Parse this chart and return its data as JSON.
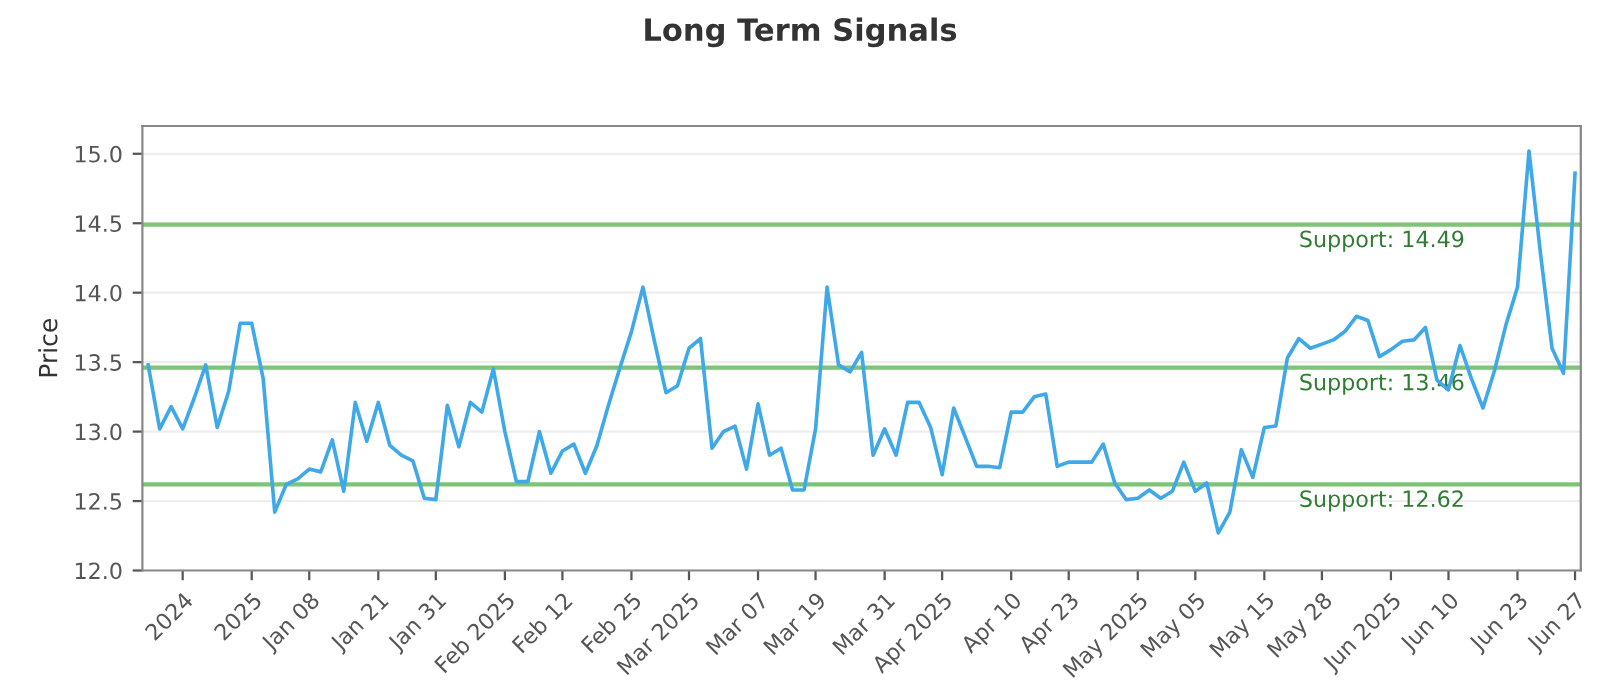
{
  "chart_data": {
    "type": "line",
    "title": "Long Term Signals",
    "ylabel": "Price",
    "categories": [
      null,
      null,
      null,
      "2024",
      null,
      null,
      null,
      null,
      null,
      "2025",
      null,
      null,
      null,
      null,
      "Jan 08",
      null,
      null,
      null,
      null,
      null,
      "Jan 21",
      null,
      null,
      null,
      null,
      "Jan 31",
      null,
      null,
      null,
      null,
      null,
      "Feb 2025",
      null,
      null,
      null,
      null,
      "Feb 12",
      null,
      null,
      null,
      null,
      null,
      "Feb 25",
      null,
      null,
      null,
      null,
      "Mar 2025",
      null,
      null,
      null,
      null,
      null,
      "Mar 07",
      null,
      null,
      null,
      null,
      "Mar 19",
      null,
      null,
      null,
      null,
      null,
      "Mar 31",
      null,
      null,
      null,
      null,
      "Apr 2025",
      null,
      null,
      null,
      null,
      null,
      "Apr 10",
      null,
      null,
      null,
      null,
      "Apr 23",
      null,
      null,
      null,
      null,
      null,
      "May 2025",
      null,
      null,
      null,
      null,
      "May 05",
      null,
      null,
      null,
      null,
      null,
      "May 15",
      null,
      null,
      null,
      null,
      "May 28",
      null,
      null,
      null,
      null,
      null,
      "Jun 2025",
      null,
      null,
      null,
      null,
      "Jun 10",
      null,
      null,
      null,
      null,
      null,
      "Jun 23",
      null,
      null,
      null,
      null,
      "Jun 27"
    ],
    "series": [
      {
        "color": "#3ea8e8",
        "values": [
          13.48,
          13.02,
          13.18,
          13.02,
          13.24,
          13.48,
          13.03,
          13.29,
          13.78,
          13.78,
          13.38,
          12.42,
          12.62,
          12.66,
          12.73,
          12.71,
          12.94,
          12.57,
          13.21,
          12.93,
          13.21,
          12.9,
          12.83,
          12.79,
          12.52,
          12.51,
          13.19,
          12.89,
          13.21,
          13.14,
          13.45,
          13.0,
          12.64,
          12.64,
          13.0,
          12.7,
          12.86,
          12.91,
          12.7,
          12.9,
          13.19,
          13.46,
          13.72,
          14.04,
          13.65,
          13.28,
          13.33,
          13.6,
          13.67,
          12.88,
          13.0,
          13.04,
          12.73,
          13.2,
          12.83,
          12.88,
          12.58,
          12.58,
          13.02,
          14.04,
          13.48,
          13.43,
          13.57,
          12.83,
          13.02,
          12.83,
          13.21,
          13.21,
          13.03,
          12.69,
          13.17,
          12.96,
          12.75,
          12.75,
          12.74,
          13.14,
          13.14,
          13.25,
          13.27,
          12.75,
          12.78,
          12.78,
          12.78,
          12.91,
          12.63,
          12.51,
          12.52,
          12.58,
          12.52,
          12.57,
          12.78,
          12.57,
          12.63,
          12.27,
          12.42,
          12.87,
          12.67,
          13.03,
          13.04,
          13.53,
          13.67,
          13.6,
          13.63,
          13.66,
          13.72,
          13.83,
          13.8,
          13.54,
          13.59,
          13.65,
          13.66,
          13.75,
          13.37,
          13.3,
          13.62,
          13.38,
          13.17,
          13.44,
          13.77,
          14.04,
          15.02,
          14.28,
          13.6,
          13.42,
          14.86
        ]
      }
    ],
    "ylim": [
      12.0,
      15.2
    ],
    "yticks": [
      {
        "value": 12.0,
        "label": "12.0"
      },
      {
        "value": 12.5,
        "label": "12.5"
      },
      {
        "value": 13.0,
        "label": "13.0"
      },
      {
        "value": 13.5,
        "label": "13.5"
      },
      {
        "value": 14.0,
        "label": "14.0"
      },
      {
        "value": 14.5,
        "label": "14.5"
      },
      {
        "value": 15.0,
        "label": "15.0"
      }
    ],
    "grid": "y",
    "legend": false,
    "marker": "none",
    "line_style": "solid",
    "ref_lines": [
      {
        "axis": "y",
        "value": 14.49,
        "label": "Support: 14.49",
        "color": "#7cc576"
      },
      {
        "axis": "y",
        "value": 13.46,
        "label": "Support: 13.46",
        "color": "#7cc576"
      },
      {
        "axis": "y",
        "value": 12.62,
        "label": "Support: 12.62",
        "color": "#7cc576"
      }
    ]
  }
}
